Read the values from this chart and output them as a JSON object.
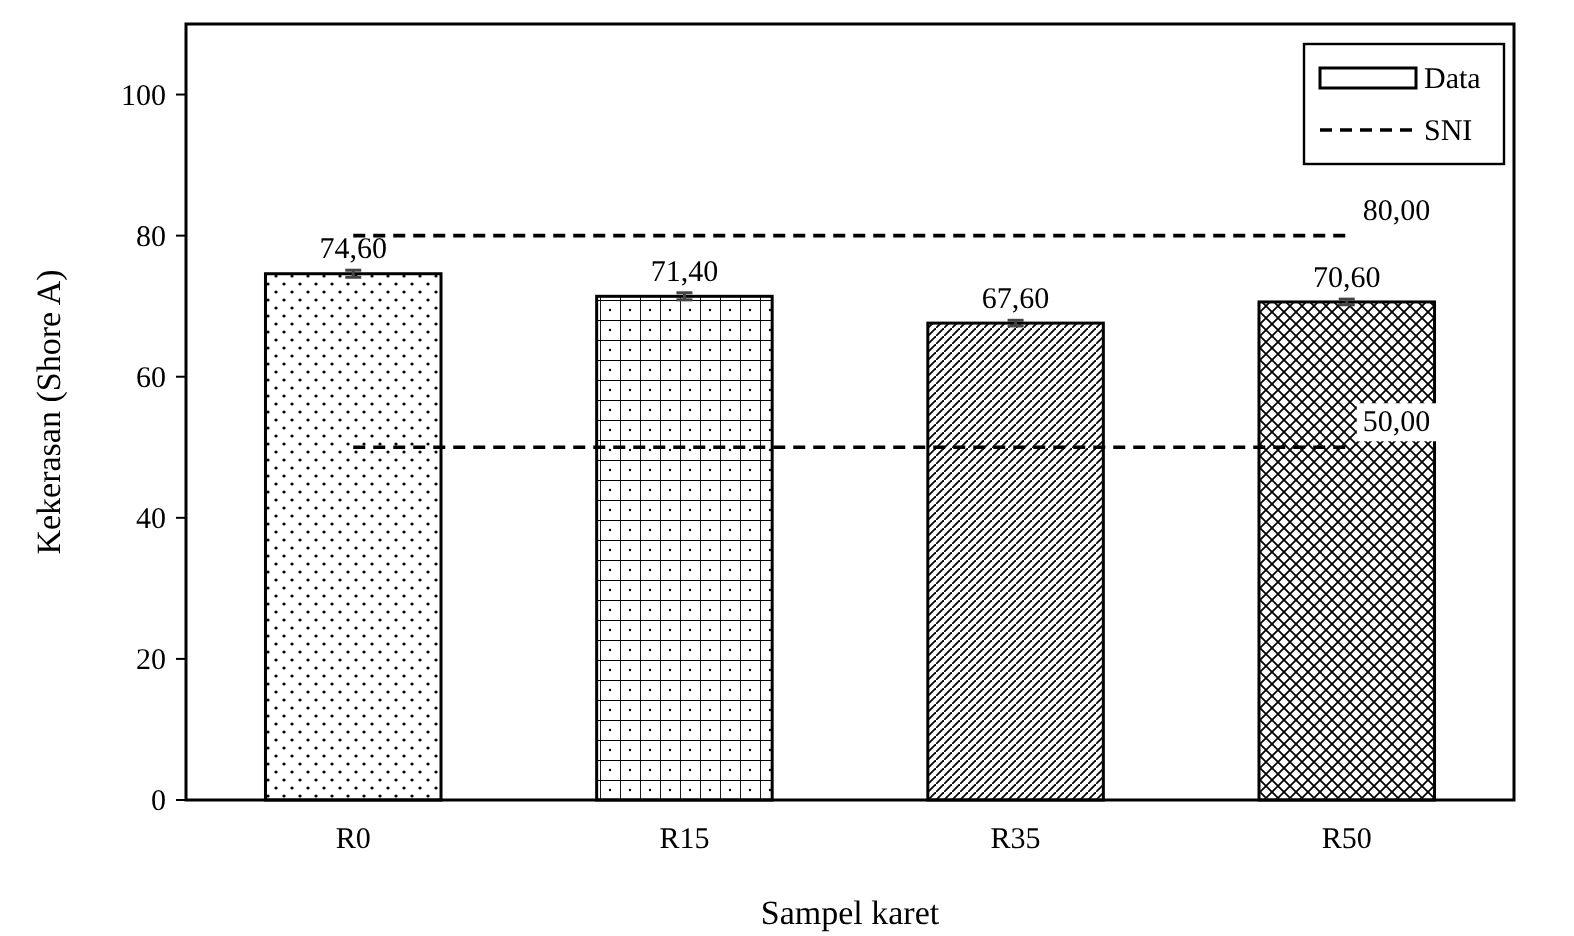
{
  "chart_data": {
    "type": "bar",
    "xlabel": "Sampel karet",
    "ylabel": "Kekerasan (Shore A)",
    "categories": [
      "R0",
      "R15",
      "R35",
      "R50"
    ],
    "ylim": [
      0,
      110
    ],
    "yticks": [
      0,
      20,
      40,
      60,
      80,
      100
    ],
    "grid": false,
    "legend": "top right",
    "series": [
      {
        "name": "Data",
        "color": "#000000",
        "values": [
          74.6,
          71.4,
          67.6,
          70.6
        ],
        "errors": [
          0.5,
          0.5,
          0.4,
          0.4
        ],
        "value_labels": [
          "74,60",
          "71,40",
          "67,60",
          "70,60"
        ]
      },
      {
        "name": "SNI",
        "type": "line",
        "color": "#000000",
        "line_style": "dashed",
        "marker": "none",
        "values": [
          80,
          80,
          80,
          80
        ],
        "value_labels": [
          null,
          null,
          null,
          "80,00"
        ]
      },
      {
        "type": "line",
        "color": "#000000",
        "line_style": "dashed",
        "marker": "none",
        "values": [
          50,
          50,
          50,
          50
        ],
        "value_labels": [
          null,
          null,
          null,
          "50,00"
        ]
      }
    ]
  }
}
